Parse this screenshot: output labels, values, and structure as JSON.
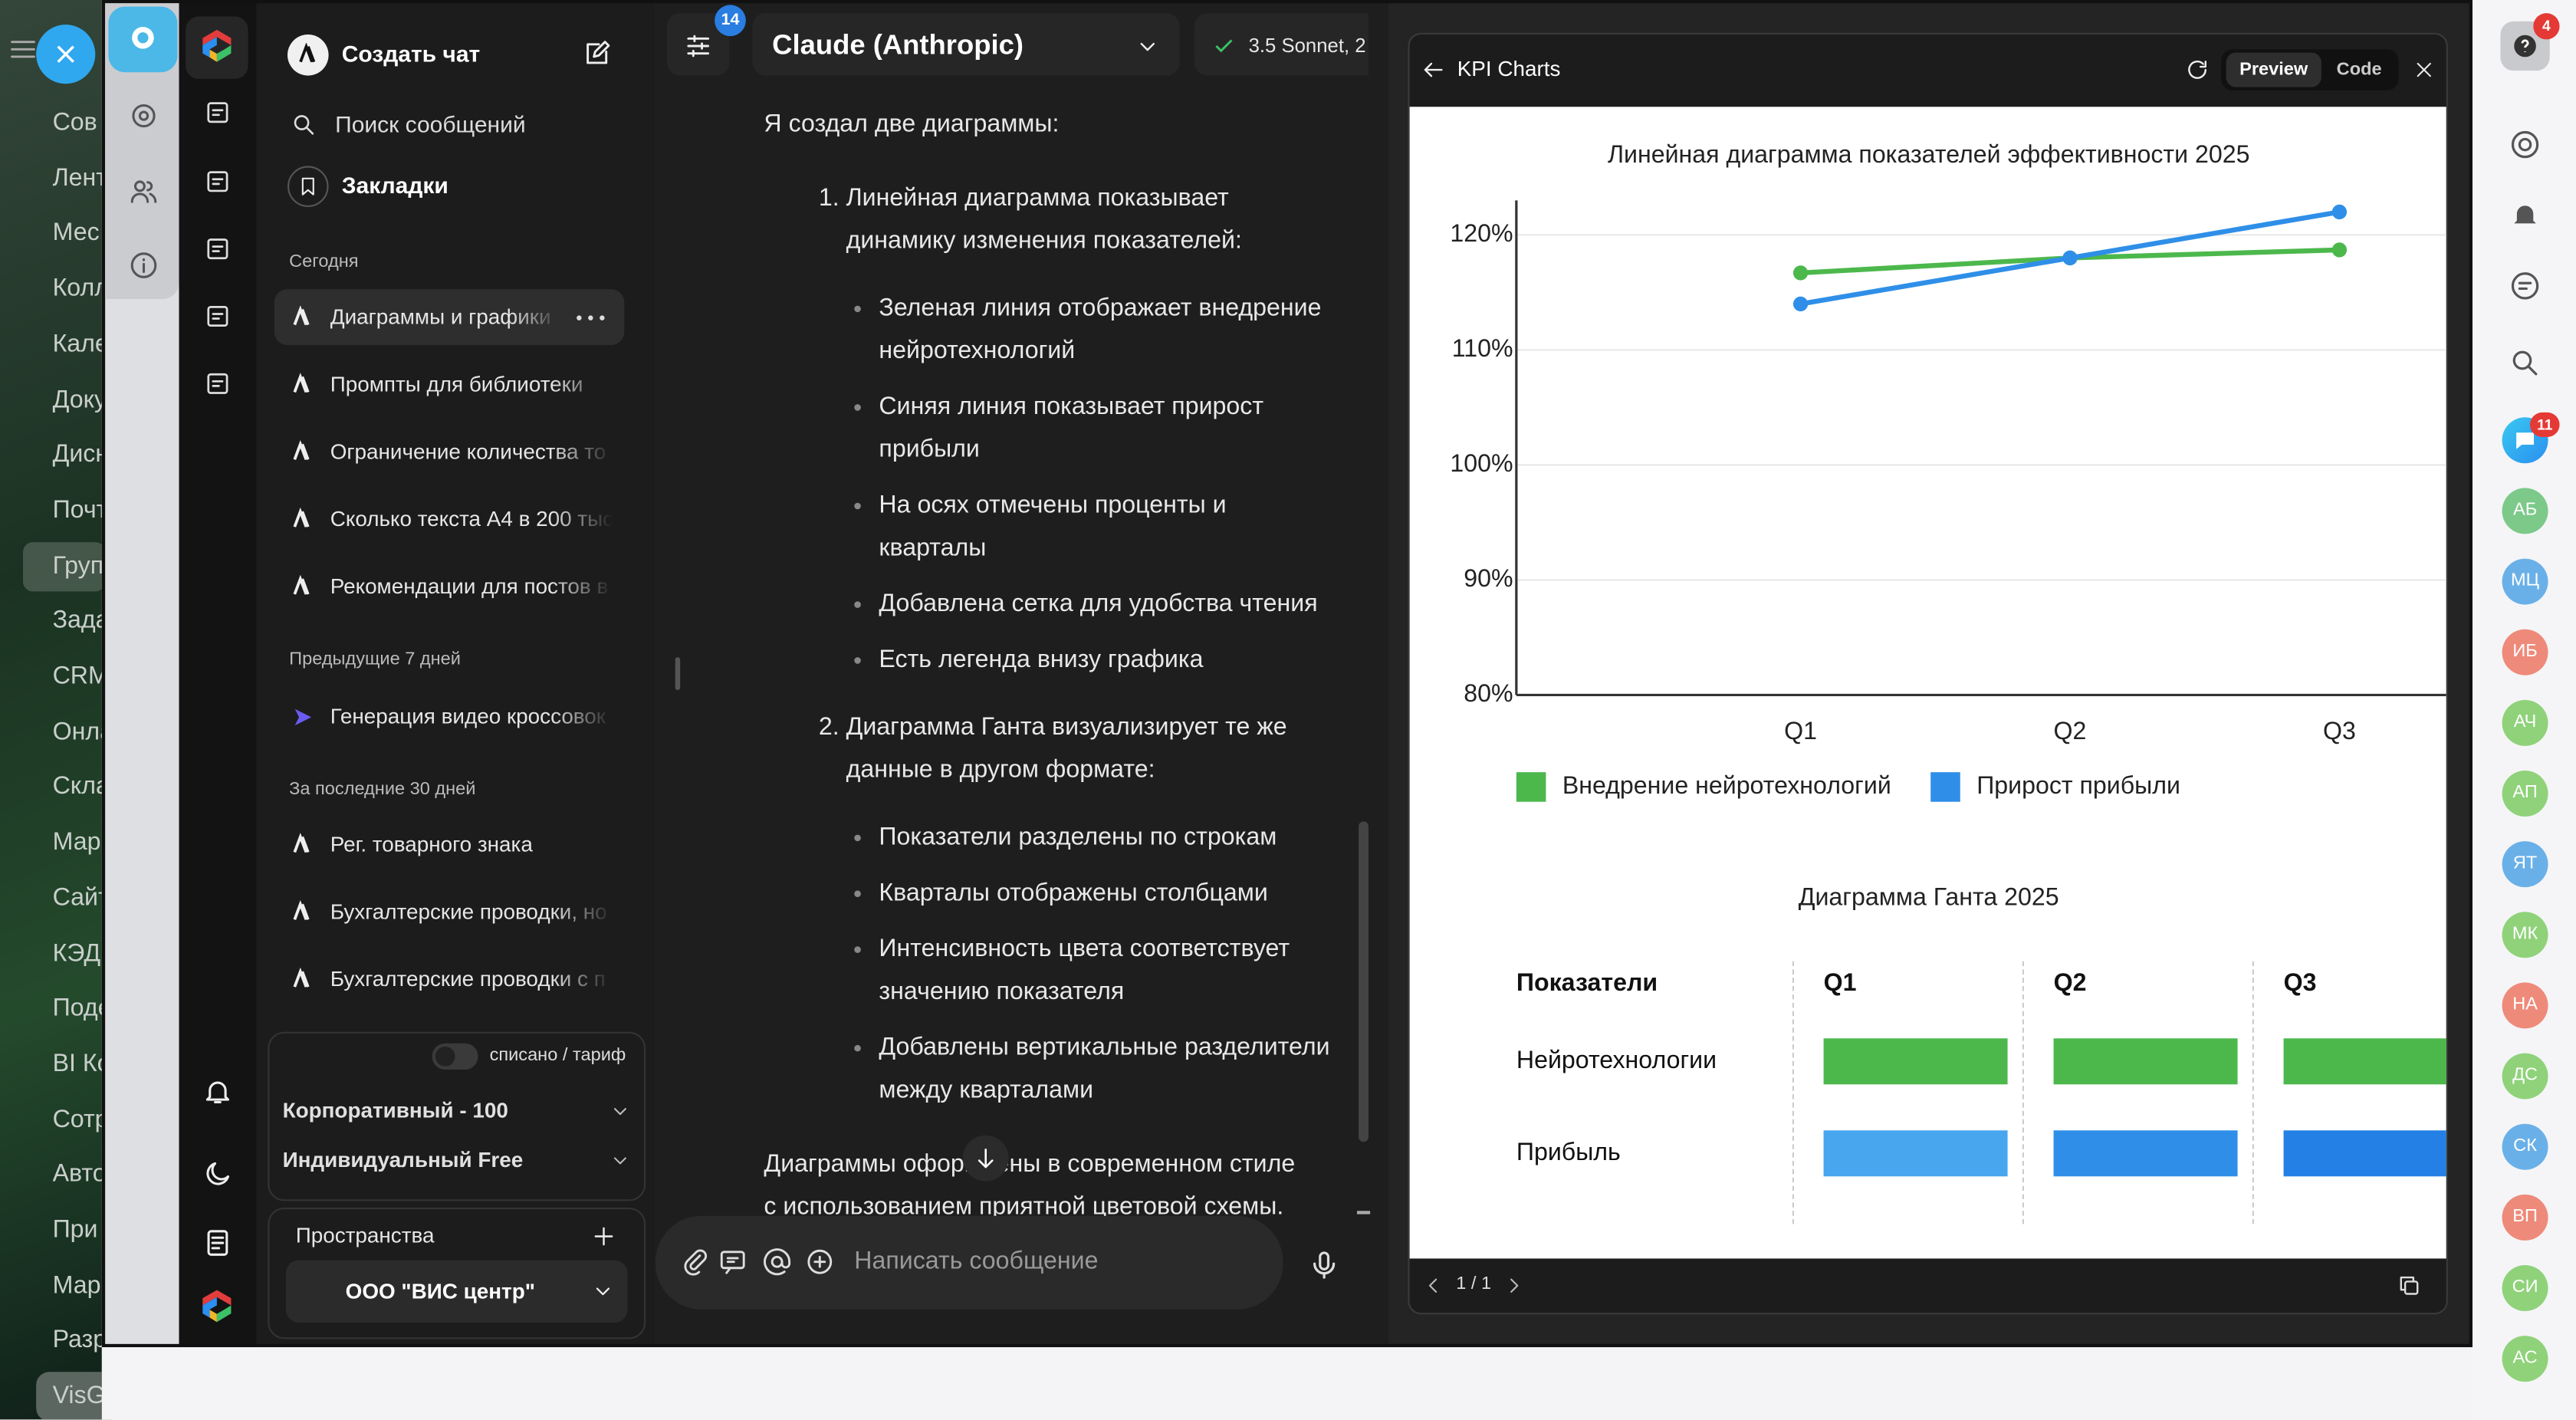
{
  "left_strip": [
    "Сов",
    "Лент",
    "Мес",
    "Колл",
    "Кале",
    "Доку",
    "Дисн",
    "Почт",
    "Груп",
    "Зада",
    "CRM",
    "Онла",
    "Скла",
    "Мар",
    "Сайт",
    "КЭД",
    "Поде",
    "BI Ко",
    "Сотр",
    "Авто",
    "При",
    "Мар",
    "Разр",
    "VisG"
  ],
  "sidebar": {
    "new_chat": "Создать чат",
    "search": "Поиск сообщений",
    "bookmarks": "Закладки",
    "groups": [
      {
        "label": "Сегодня",
        "chats": [
          "Диаграммы и графики",
          "Промпты для библиотеки",
          "Ограничение количества то",
          "Сколько текста А4 в 200 тыс",
          "Рекомендации для постов в"
        ]
      },
      {
        "label": "Предыдущие 7 дней",
        "chats": [
          "Генерация видео кроссовок"
        ]
      },
      {
        "label": "За последние 30 дней",
        "chats": [
          "Рег. товарного знака",
          "Бухгалтерские проводки, но",
          "Бухгалтерские проводки с п"
        ]
      }
    ],
    "toggle_label": "списано / тариф",
    "plans": [
      "Корпоративный - 100",
      "Индивидуальный Free"
    ],
    "spaces_title": "Пространства",
    "space": "ООО \"ВИС центр\""
  },
  "chat": {
    "filter_badge": "14",
    "model": "Claude (Anthropic)",
    "version": "3.5 Sonnet, 2",
    "response": {
      "intro": "Я создал две диаграммы:",
      "sections": [
        {
          "heading": "Линейная диаграмма показывает динамику изменения показателей:",
          "bullets": [
            "Зеленая линия отображает внедрение нейротехнологий",
            "Синяя линия показывает прирост прибыли",
            "На осях отмечены проценты и кварталы",
            "Добавлена сетка для удобства чтения",
            "Есть легенда внизу графика"
          ]
        },
        {
          "heading": "Диаграмма Ганта визуализирует те же данные в другом формате:",
          "bullets": [
            "Показатели разделены по строкам",
            "Кварталы отображены столбцами",
            "Интенсивность цвета соответствует значению показателя",
            "Добавлены вертикальные разделители между кварталами"
          ]
        }
      ],
      "outro": "Диаграммы оформлены в современном стиле с использованием приятной цветовой схемы."
    },
    "input_placeholder": "Написать сообщение"
  },
  "artifact": {
    "title": "KPI Charts",
    "tabs": [
      "Preview",
      "Code"
    ],
    "pager": "1 / 1",
    "gantt": {
      "title": "Диаграмма Ганта 2025",
      "header": [
        "Показатели",
        "Q1",
        "Q2",
        "Q3"
      ],
      "rows": [
        "Нейротехнологии",
        "Прибыль"
      ]
    }
  },
  "chart_data": {
    "type": "line",
    "title": "Линейная диаграмма показателей эффективности 2025",
    "categories": [
      "Q1",
      "Q2",
      "Q3"
    ],
    "series": [
      {
        "name": "Внедрение нейротехнологий",
        "color": "#4cb84c",
        "values": [
          116.7,
          118,
          118.7
        ]
      },
      {
        "name": "Прирост прибыли",
        "color": "#2f8fe8",
        "values": [
          114,
          118,
          122
        ]
      }
    ],
    "ylim": [
      80,
      123
    ],
    "yticks": [
      {
        "value": 80,
        "label": "80%"
      },
      {
        "value": 90,
        "label": "90%"
      },
      {
        "value": 100,
        "label": "100%"
      },
      {
        "value": 110,
        "label": "110%"
      },
      {
        "value": 120,
        "label": "120%"
      }
    ],
    "grid": true,
    "legend": "bottom"
  },
  "right_bar": {
    "help_badge": "4",
    "chat_badge": "11",
    "avatars": [
      "АБ",
      "МЦ",
      "ИБ",
      "АЧ",
      "АП",
      "ЯТ",
      "МК",
      "НА",
      "ДС",
      "СК",
      "ВП",
      "СИ",
      "АС"
    ]
  }
}
